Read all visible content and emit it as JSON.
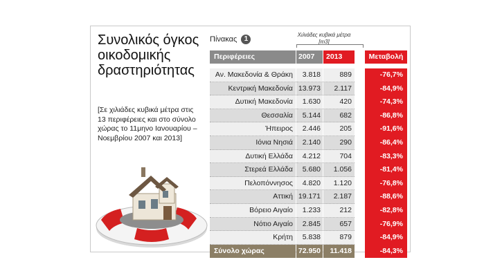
{
  "title": "Συνολικός όγκος οικοδομικής δραστηριότητας",
  "subtitle": "[Σε χιλιάδες κυβικά μέτρα στις 13 περιφέρειες και στο σύνολο χώρας το 11μηνο Ιανουαρίου – Νοεμβρίου 2007 και 2013]",
  "table_caption": "Πίνακας",
  "table_number": "1",
  "units_label": "Χιλιάδες κυβικά μέτρα [m3]",
  "headers": {
    "region": "Περιφέρειες",
    "y2007": "2007",
    "y2013": "2013",
    "change": "Μεταβολή"
  },
  "rows": [
    {
      "region": "Αν. Μακεδονία & Θράκη",
      "v2007": "3.818",
      "v2013": "889",
      "change": "-76,7%"
    },
    {
      "region": "Κεντρική Μακεδονία",
      "v2007": "13.973",
      "v2013": "2.117",
      "change": "-84,9%"
    },
    {
      "region": "Δυτική Μακεδονία",
      "v2007": "1.630",
      "v2013": "420",
      "change": "-74,3%"
    },
    {
      "region": "Θεσσαλία",
      "v2007": "5.144",
      "v2013": "682",
      "change": "-86,8%"
    },
    {
      "region": "Ήπειρος",
      "v2007": "2.446",
      "v2013": "205",
      "change": "-91,6%"
    },
    {
      "region": "Ιόνια Νησιά",
      "v2007": "2.140",
      "v2013": "290",
      "change": "-86,4%"
    },
    {
      "region": "Δυτική Ελλάδα",
      "v2007": "4.212",
      "v2013": "704",
      "change": "-83,3%"
    },
    {
      "region": "Στερεά Ελλάδα",
      "v2007": "5.680",
      "v2013": "1.056",
      "change": "-81,4%"
    },
    {
      "region": "Πελοπόννησος",
      "v2007": "4.820",
      "v2013": "1.120",
      "change": "-76,8%"
    },
    {
      "region": "Αττική",
      "v2007": "19.171",
      "v2013": "2.187",
      "change": "-88,6%"
    },
    {
      "region": "Βόρειο Αιγαίο",
      "v2007": "1.233",
      "v2013": "212",
      "change": "-82,8%"
    },
    {
      "region": "Νότιο Αιγαίο",
      "v2007": "2.845",
      "v2013": "657",
      "change": "-76,9%"
    },
    {
      "region": "Κρήτη",
      "v2007": "5.838",
      "v2013": "879",
      "change": "-84,9%"
    }
  ],
  "total": {
    "region": "Σύνολο χώρας",
    "v2007": "72.950",
    "v2013": "11.418",
    "change": "-84,3%"
  },
  "colors": {
    "accent_red": "#e11b22",
    "header_grey": "#8a8a8a",
    "total_brown": "#8c7f66"
  }
}
